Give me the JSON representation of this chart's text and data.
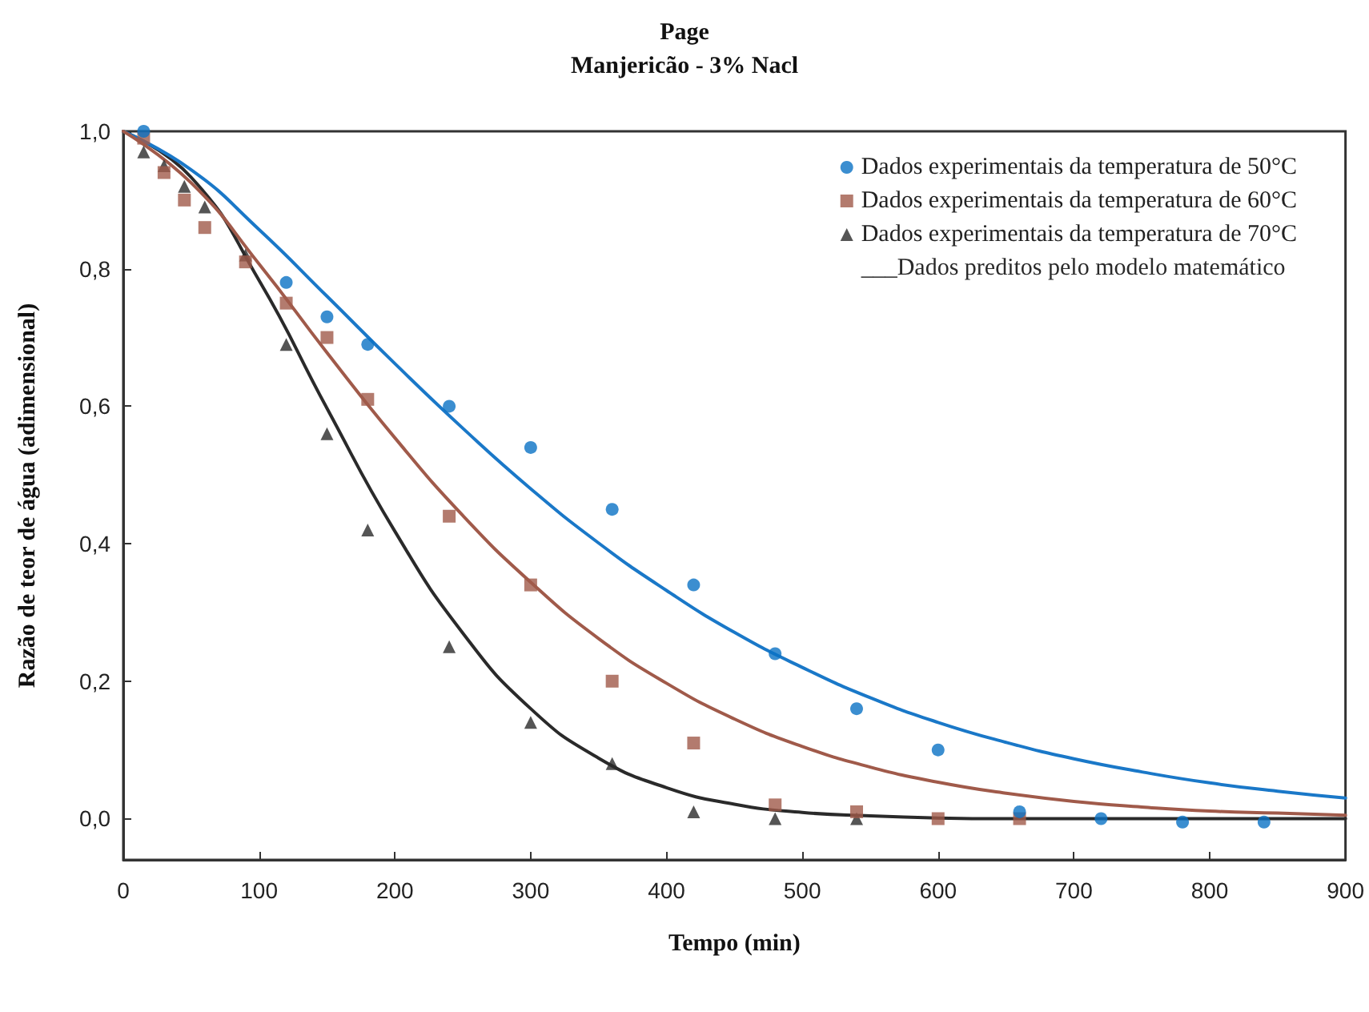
{
  "chart_data": {
    "type": "scatter",
    "title": "Page",
    "subtitle": "Manjericão - 3% Nacl",
    "xlabel": "Tempo (min)",
    "ylabel": "Razão de teor de água (adimensional)",
    "xlim": [
      0,
      900
    ],
    "xticks": [
      0,
      100,
      200,
      300,
      400,
      500,
      600,
      700,
      800,
      900
    ],
    "ylim": [
      -0.06,
      1.0
    ],
    "yticks": [
      {
        "value": 0,
        "label": "0,0"
      },
      {
        "value": 0.2,
        "label": "0,2"
      },
      {
        "value": 0.4,
        "label": "0,4"
      },
      {
        "value": 0.6,
        "label": "0,6"
      },
      {
        "value": 0.8,
        "label": "0,8"
      },
      {
        "value": 1.0,
        "label": "1,0"
      }
    ],
    "grid": false,
    "legend": "top right",
    "series": [
      {
        "name": "Dados experimentais da temperatura de 50°C",
        "marker": "circle",
        "color": "#0a72c4",
        "x": [
          15,
          120,
          150,
          180,
          240,
          300,
          360,
          420,
          480,
          540,
          600,
          660,
          720,
          780,
          840
        ],
        "values": [
          1.0,
          0.78,
          0.73,
          0.69,
          0.6,
          0.54,
          0.45,
          0.34,
          0.24,
          0.16,
          0.1,
          0.01,
          0.0,
          -0.005,
          -0.005
        ]
      },
      {
        "name": "Dados experimentais da temperatura de 60°C",
        "marker": "square",
        "color": "#a05a4a",
        "x": [
          15,
          30,
          45,
          60,
          90,
          120,
          150,
          180,
          240,
          300,
          360,
          420,
          480,
          540,
          600,
          660
        ],
        "values": [
          0.99,
          0.94,
          0.9,
          0.86,
          0.81,
          0.75,
          0.7,
          0.61,
          0.44,
          0.34,
          0.2,
          0.11,
          0.02,
          0.01,
          0.0,
          0.0
        ]
      },
      {
        "name": "Dados experimentais da temperatura de 70°C",
        "marker": "triangle",
        "color": "#2a2a2a",
        "x": [
          15,
          30,
          45,
          60,
          90,
          120,
          150,
          180,
          240,
          300,
          360,
          420,
          480,
          540
        ],
        "values": [
          0.97,
          0.95,
          0.92,
          0.89,
          0.82,
          0.69,
          0.56,
          0.42,
          0.25,
          0.14,
          0.08,
          0.01,
          0.0,
          0.0
        ]
      },
      {
        "name": "___Dados preditos pelo modelo matemático",
        "type": "line",
        "marker": "none",
        "color": "#2a2a2a",
        "x": [
          0,
          50,
          100,
          150,
          200,
          250,
          300,
          350,
          400,
          450,
          500,
          550,
          600,
          650,
          700,
          750,
          800,
          850,
          900
        ],
        "values": [
          1.0,
          0.933,
          0.783,
          0.597,
          0.418,
          0.27,
          0.16,
          0.088,
          0.045,
          0.021,
          0.009,
          0.004,
          0.001,
          0.0,
          0.0,
          0.0,
          0.0,
          0.0,
          0.0
        ]
      },
      {
        "type": "line",
        "marker": "none",
        "color": "#1a78c8",
        "x": [
          0,
          50,
          100,
          150,
          200,
          250,
          300,
          350,
          400,
          450,
          500,
          550,
          600,
          650,
          700,
          750,
          800,
          850,
          900
        ],
        "values": [
          1.0,
          0.944,
          0.857,
          0.76,
          0.662,
          0.568,
          0.48,
          0.401,
          0.332,
          0.271,
          0.22,
          0.176,
          0.14,
          0.111,
          0.087,
          0.068,
          0.052,
          0.04,
          0.03
        ]
      },
      {
        "type": "line",
        "marker": "none",
        "color": "#a05a4a",
        "x": [
          0,
          50,
          100,
          150,
          200,
          250,
          300,
          350,
          400,
          450,
          500,
          550,
          600,
          650,
          700,
          750,
          800,
          850,
          900
        ],
        "values": [
          1.0,
          0.925,
          0.807,
          0.678,
          0.554,
          0.441,
          0.344,
          0.262,
          0.197,
          0.145,
          0.105,
          0.075,
          0.053,
          0.037,
          0.025,
          0.017,
          0.011,
          0.008,
          0.005
        ]
      }
    ]
  }
}
